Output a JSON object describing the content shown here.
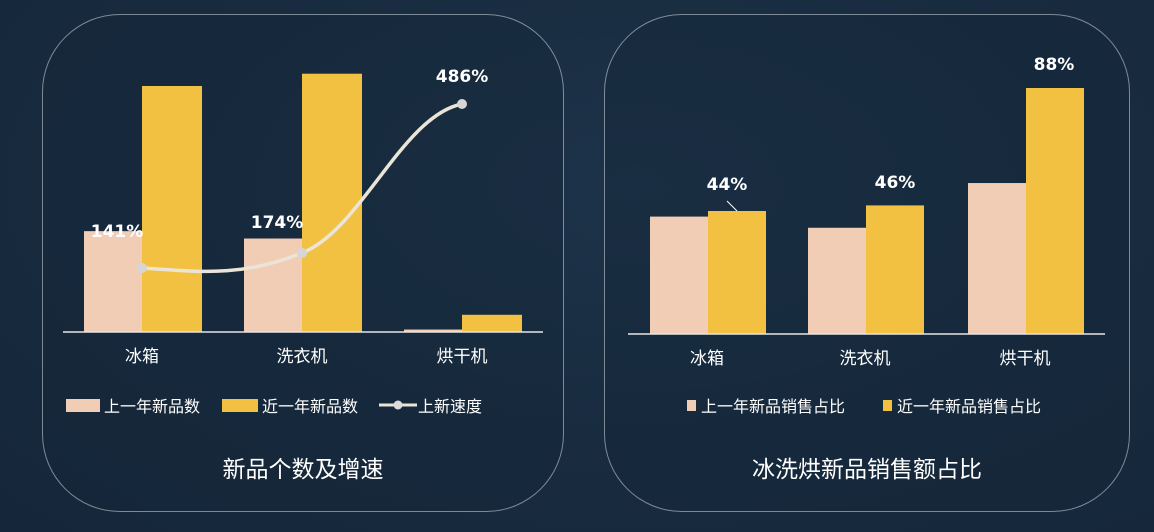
{
  "colors": {
    "previous_year": "#f1cdb5",
    "recent_year": "#f3c142",
    "growth_line": "#eae5d6",
    "axis": "#e6e6e6",
    "text": "#ffffff"
  },
  "chart_data": [
    {
      "type": "bar",
      "title": "新品个数及增速",
      "categories": [
        "冰箱",
        "洗衣机",
        "烘干机"
      ],
      "ylim": [
        0,
        100
      ],
      "series": [
        {
          "name": "上一年新品数",
          "values": [
            41,
            38,
            1
          ]
        },
        {
          "name": "近一年新品数",
          "values": [
            100,
            105,
            7
          ]
        }
      ],
      "line_series": {
        "name": "上新速度",
        "ylim": [
          0,
          550
        ],
        "values": [
          141,
          174,
          486
        ],
        "labels": [
          "141%",
          "174%",
          "486%"
        ]
      },
      "grid": false,
      "legend_position": "bottom"
    },
    {
      "type": "bar",
      "title": "冰洗烘新品销售额占比",
      "categories": [
        "冰箱",
        "洗衣机",
        "烘干机"
      ],
      "ylim": [
        0,
        100
      ],
      "series": [
        {
          "name": "上一年新品销售占比",
          "values": [
            42,
            38,
            54
          ]
        },
        {
          "name": "近一年新品销售占比",
          "values": [
            44,
            46,
            88
          ]
        }
      ],
      "data_labels": [
        "44%",
        "46%",
        "88%"
      ],
      "grid": false,
      "legend_position": "bottom"
    }
  ]
}
